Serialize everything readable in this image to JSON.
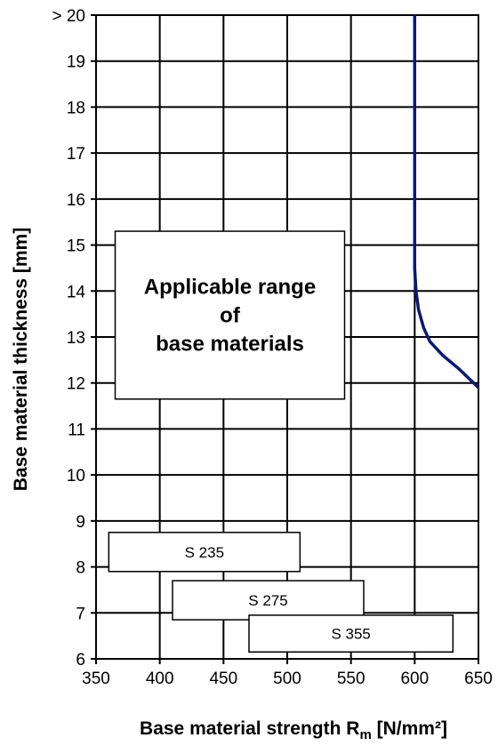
{
  "chart_data": {
    "type": "line",
    "xlabel_main": "Base material strength R",
    "xlabel_sub": "m",
    "xlabel_unit": " [N/mm²]",
    "ylabel": "Base material thickness [mm]",
    "xlim": [
      350,
      650
    ],
    "ylim": [
      6,
      20
    ],
    "x_ticks": [
      350,
      400,
      450,
      500,
      550,
      600,
      650
    ],
    "y_ticks": [
      6,
      7,
      8,
      9,
      10,
      11,
      12,
      13,
      14,
      15,
      16,
      17,
      18,
      19,
      20
    ],
    "y_tick_labels": [
      "6",
      "7",
      "8",
      "9",
      "10",
      "11",
      "12",
      "13",
      "14",
      "15",
      "16",
      "17",
      "18",
      "19",
      "> 20"
    ],
    "grid": true,
    "series": [
      {
        "color": "#0a1a6e",
        "x": [
          600,
          600,
          600,
          601,
          603,
          607,
          612,
          622,
          635,
          650
        ],
        "y": [
          20,
          15,
          14.5,
          14,
          13.6,
          13.2,
          12.9,
          12.6,
          12.3,
          11.9
        ]
      }
    ],
    "annotation": {
      "lines": [
        "Applicable range",
        "of",
        "base materials"
      ],
      "x_range": [
        365,
        545
      ],
      "y_range": [
        11.65,
        15.3
      ]
    },
    "material_ranges": [
      {
        "label": "S 235",
        "x_range": [
          360,
          510
        ],
        "y_range": [
          7.9,
          8.75
        ]
      },
      {
        "label": "S 275",
        "x_range": [
          410,
          560
        ],
        "y_range": [
          6.85,
          7.7
        ]
      },
      {
        "label": "S 355",
        "x_range": [
          470,
          630
        ],
        "y_range": [
          6.15,
          6.95
        ]
      }
    ]
  }
}
